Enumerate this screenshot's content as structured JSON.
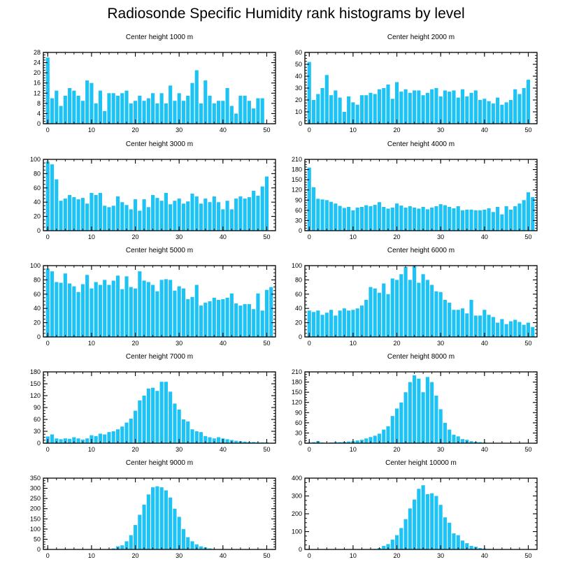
{
  "title": "Radiosonde Specific Humidity rank histograms by level",
  "bar_color": "#1ec3f5",
  "chart_data": [
    {
      "type": "bar",
      "title": "Center height 1000 m",
      "xlim": [
        -1,
        52
      ],
      "ylim": [
        0,
        28
      ],
      "yticks": [
        0,
        4,
        8,
        12,
        16,
        20,
        24,
        28
      ],
      "xticks": [
        0,
        10,
        20,
        30,
        40,
        50
      ],
      "x": [
        0,
        1,
        2,
        3,
        4,
        5,
        6,
        7,
        8,
        9,
        10,
        11,
        12,
        13,
        14,
        15,
        16,
        17,
        18,
        19,
        20,
        21,
        22,
        23,
        24,
        25,
        26,
        27,
        28,
        29,
        30,
        31,
        32,
        33,
        34,
        35,
        36,
        37,
        38,
        39,
        40,
        41,
        42,
        43,
        44,
        45,
        46,
        47,
        48,
        49,
        50,
        51
      ],
      "values": [
        26,
        10,
        13,
        7,
        11,
        14,
        13,
        11,
        9,
        17,
        16,
        8,
        13,
        5,
        12,
        12,
        11,
        12,
        13,
        8,
        9,
        11,
        9,
        10,
        12,
        8,
        12,
        8,
        15,
        9,
        12,
        9,
        11,
        16,
        21,
        8,
        17,
        11,
        8,
        9,
        9,
        14,
        7,
        4,
        11,
        11,
        9,
        6,
        10,
        10,
        0,
        0
      ]
    },
    {
      "type": "bar",
      "title": "Center height 2000 m",
      "xlim": [
        -1,
        52
      ],
      "ylim": [
        0,
        60
      ],
      "yticks": [
        0,
        10,
        20,
        30,
        40,
        50,
        60
      ],
      "xticks": [
        0,
        10,
        20,
        30,
        40,
        50
      ],
      "x": [
        0,
        1,
        2,
        3,
        4,
        5,
        6,
        7,
        8,
        9,
        10,
        11,
        12,
        13,
        14,
        15,
        16,
        17,
        18,
        19,
        20,
        21,
        22,
        23,
        24,
        25,
        26,
        27,
        28,
        29,
        30,
        31,
        32,
        33,
        34,
        35,
        36,
        37,
        38,
        39,
        40,
        41,
        42,
        43,
        44,
        45,
        46,
        47,
        48,
        49,
        50,
        51
      ],
      "values": [
        52,
        20,
        25,
        30,
        41,
        24,
        28,
        22,
        10,
        23,
        18,
        16,
        24,
        24,
        26,
        25,
        29,
        30,
        33,
        21,
        35,
        27,
        29,
        26,
        28,
        28,
        24,
        26,
        29,
        30,
        23,
        28,
        27,
        28,
        22,
        29,
        23,
        26,
        28,
        20,
        21,
        19,
        17,
        22,
        16,
        18,
        20,
        29,
        25,
        30,
        37,
        0
      ]
    },
    {
      "type": "bar",
      "title": "Center height 3000 m",
      "xlim": [
        -1,
        52
      ],
      "ylim": [
        0,
        100
      ],
      "yticks": [
        0,
        20,
        40,
        60,
        80,
        100
      ],
      "xticks": [
        0,
        10,
        20,
        30,
        40,
        50
      ],
      "x": [
        0,
        1,
        2,
        3,
        4,
        5,
        6,
        7,
        8,
        9,
        10,
        11,
        12,
        13,
        14,
        15,
        16,
        17,
        18,
        19,
        20,
        21,
        22,
        23,
        24,
        25,
        26,
        27,
        28,
        29,
        30,
        31,
        32,
        33,
        34,
        35,
        36,
        37,
        38,
        39,
        40,
        41,
        42,
        43,
        44,
        45,
        46,
        47,
        48,
        49,
        50,
        51
      ],
      "values": [
        97,
        93,
        72,
        42,
        45,
        50,
        47,
        44,
        46,
        38,
        53,
        50,
        53,
        35,
        33,
        35,
        48,
        40,
        36,
        30,
        44,
        28,
        44,
        33,
        50,
        46,
        42,
        53,
        37,
        42,
        45,
        38,
        41,
        52,
        48,
        38,
        45,
        40,
        48,
        40,
        30,
        42,
        30,
        45,
        48,
        45,
        47,
        56,
        49,
        62,
        76,
        0
      ]
    },
    {
      "type": "bar",
      "title": "Center height 4000 m",
      "xlim": [
        -1,
        52
      ],
      "ylim": [
        0,
        210
      ],
      "yticks": [
        0,
        30,
        60,
        90,
        120,
        150,
        180,
        210
      ],
      "xticks": [
        0,
        10,
        20,
        30,
        40,
        50
      ],
      "x": [
        0,
        1,
        2,
        3,
        4,
        5,
        6,
        7,
        8,
        9,
        10,
        11,
        12,
        13,
        14,
        15,
        16,
        17,
        18,
        19,
        20,
        21,
        22,
        23,
        24,
        25,
        26,
        27,
        28,
        29,
        30,
        31,
        32,
        33,
        34,
        35,
        36,
        37,
        38,
        39,
        40,
        41,
        42,
        43,
        44,
        45,
        46,
        47,
        48,
        49,
        50,
        51
      ],
      "values": [
        186,
        128,
        94,
        92,
        90,
        85,
        80,
        73,
        67,
        70,
        60,
        68,
        70,
        75,
        72,
        76,
        84,
        70,
        65,
        68,
        80,
        74,
        68,
        72,
        68,
        65,
        70,
        63,
        68,
        72,
        78,
        75,
        70,
        66,
        72,
        60,
        62,
        62,
        60,
        60,
        62,
        66,
        55,
        70,
        48,
        72,
        62,
        72,
        80,
        90,
        113,
        99
      ]
    },
    {
      "type": "bar",
      "title": "Center height 5000 m",
      "xlim": [
        -1,
        52
      ],
      "ylim": [
        0,
        100
      ],
      "yticks": [
        0,
        20,
        40,
        60,
        80,
        100
      ],
      "xticks": [
        0,
        10,
        20,
        30,
        40,
        50
      ],
      "x": [
        0,
        1,
        2,
        3,
        4,
        5,
        6,
        7,
        8,
        9,
        10,
        11,
        12,
        13,
        14,
        15,
        16,
        17,
        18,
        19,
        20,
        21,
        22,
        23,
        24,
        25,
        26,
        27,
        28,
        29,
        30,
        31,
        32,
        33,
        34,
        35,
        36,
        37,
        38,
        39,
        40,
        41,
        42,
        43,
        44,
        45,
        46,
        47,
        48,
        49,
        50,
        51
      ],
      "values": [
        96,
        92,
        77,
        76,
        89,
        75,
        71,
        63,
        74,
        87,
        68,
        77,
        73,
        80,
        73,
        79,
        86,
        67,
        85,
        70,
        68,
        92,
        79,
        77,
        73,
        64,
        80,
        81,
        80,
        65,
        71,
        68,
        53,
        56,
        73,
        44,
        48,
        50,
        55,
        52,
        53,
        55,
        61,
        47,
        44,
        46,
        46,
        39,
        61,
        37,
        66,
        70
      ]
    },
    {
      "type": "bar",
      "title": "Center height 6000 m",
      "xlim": [
        -1,
        52
      ],
      "ylim": [
        0,
        100
      ],
      "yticks": [
        0,
        20,
        40,
        60,
        80,
        100
      ],
      "xticks": [
        0,
        10,
        20,
        30,
        40,
        50
      ],
      "x": [
        0,
        1,
        2,
        3,
        4,
        5,
        6,
        7,
        8,
        9,
        10,
        11,
        12,
        13,
        14,
        15,
        16,
        17,
        18,
        19,
        20,
        21,
        22,
        23,
        24,
        25,
        26,
        27,
        28,
        29,
        30,
        31,
        32,
        33,
        34,
        35,
        36,
        37,
        38,
        39,
        40,
        41,
        42,
        43,
        44,
        45,
        46,
        47,
        48,
        49,
        50,
        51
      ],
      "values": [
        37,
        35,
        37,
        31,
        34,
        38,
        30,
        37,
        40,
        37,
        38,
        40,
        44,
        52,
        70,
        68,
        62,
        75,
        60,
        82,
        80,
        88,
        98,
        80,
        100,
        76,
        88,
        80,
        73,
        64,
        63,
        52,
        48,
        38,
        38,
        40,
        33,
        52,
        30,
        30,
        38,
        31,
        28,
        20,
        25,
        18,
        22,
        24,
        21,
        17,
        20,
        14
      ]
    },
    {
      "type": "bar",
      "title": "Center height 7000 m",
      "xlim": [
        -1,
        52
      ],
      "ylim": [
        0,
        180
      ],
      "yticks": [
        0,
        30,
        60,
        90,
        120,
        150,
        180
      ],
      "xticks": [
        0,
        10,
        20,
        30,
        40,
        50
      ],
      "x": [
        0,
        1,
        2,
        3,
        4,
        5,
        6,
        7,
        8,
        9,
        10,
        11,
        12,
        13,
        14,
        15,
        16,
        17,
        18,
        19,
        20,
        21,
        22,
        23,
        24,
        25,
        26,
        27,
        28,
        29,
        30,
        31,
        32,
        33,
        34,
        35,
        36,
        37,
        38,
        39,
        40,
        41,
        42,
        43,
        44,
        45,
        46,
        47,
        48,
        49,
        50,
        51
      ],
      "values": [
        17,
        22,
        12,
        10,
        12,
        11,
        15,
        12,
        9,
        12,
        20,
        18,
        24,
        22,
        28,
        30,
        35,
        42,
        52,
        62,
        82,
        108,
        120,
        138,
        140,
        132,
        155,
        155,
        130,
        100,
        85,
        60,
        55,
        35,
        30,
        28,
        18,
        15,
        12,
        15,
        12,
        10,
        8,
        6,
        5,
        4,
        3,
        3,
        2,
        2,
        2,
        0
      ]
    },
    {
      "type": "bar",
      "title": "Center height 8000 m",
      "xlim": [
        -1,
        52
      ],
      "ylim": [
        0,
        210
      ],
      "yticks": [
        0,
        30,
        60,
        90,
        120,
        150,
        180,
        210
      ],
      "xticks": [
        0,
        10,
        20,
        30,
        40,
        50
      ],
      "x": [
        0,
        1,
        2,
        3,
        4,
        5,
        6,
        7,
        8,
        9,
        10,
        11,
        12,
        13,
        14,
        15,
        16,
        17,
        18,
        19,
        20,
        21,
        22,
        23,
        24,
        25,
        26,
        27,
        28,
        29,
        30,
        31,
        32,
        33,
        34,
        35,
        36,
        37,
        38,
        39,
        40,
        41,
        42,
        43,
        44,
        45,
        46,
        47,
        48,
        49,
        50,
        51
      ],
      "values": [
        2,
        3,
        6,
        2,
        1,
        2,
        3,
        3,
        4,
        5,
        6,
        8,
        10,
        14,
        18,
        22,
        28,
        40,
        50,
        80,
        102,
        120,
        150,
        180,
        200,
        190,
        150,
        195,
        180,
        140,
        100,
        60,
        40,
        25,
        20,
        12,
        10,
        6,
        4,
        3,
        2,
        1,
        1,
        1,
        0,
        0,
        0,
        0,
        0,
        0,
        0,
        0
      ]
    },
    {
      "type": "bar",
      "title": "Center height 9000 m",
      "xlim": [
        -1,
        52
      ],
      "ylim": [
        0,
        350
      ],
      "yticks": [
        0,
        50,
        100,
        150,
        200,
        250,
        300,
        350
      ],
      "xticks": [
        0,
        10,
        20,
        30,
        40,
        50
      ],
      "x": [
        0,
        1,
        2,
        3,
        4,
        5,
        6,
        7,
        8,
        9,
        10,
        11,
        12,
        13,
        14,
        15,
        16,
        17,
        18,
        19,
        20,
        21,
        22,
        23,
        24,
        25,
        26,
        27,
        28,
        29,
        30,
        31,
        32,
        33,
        34,
        35,
        36,
        37,
        38,
        39,
        40,
        41,
        42,
        43,
        44,
        45,
        46,
        47,
        48,
        49,
        50,
        51
      ],
      "values": [
        0,
        0,
        0,
        0,
        0,
        0,
        0,
        0,
        0,
        0,
        0,
        0,
        0,
        1,
        2,
        5,
        15,
        20,
        40,
        70,
        120,
        170,
        220,
        270,
        305,
        310,
        305,
        290,
        255,
        200,
        160,
        100,
        60,
        40,
        25,
        15,
        10,
        5,
        2,
        1,
        0,
        0,
        0,
        0,
        0,
        0,
        0,
        0,
        0,
        0,
        0,
        0
      ]
    },
    {
      "type": "bar",
      "title": "Center height 10000 m",
      "xlim": [
        -1,
        52
      ],
      "ylim": [
        0,
        400
      ],
      "yticks": [
        0,
        100,
        200,
        300,
        400
      ],
      "xticks": [
        0,
        10,
        20,
        30,
        40,
        50
      ],
      "x": [
        0,
        1,
        2,
        3,
        4,
        5,
        6,
        7,
        8,
        9,
        10,
        11,
        12,
        13,
        14,
        15,
        16,
        17,
        18,
        19,
        20,
        21,
        22,
        23,
        24,
        25,
        26,
        27,
        28,
        29,
        30,
        31,
        32,
        33,
        34,
        35,
        36,
        37,
        38,
        39,
        40,
        41,
        42,
        43,
        44,
        45,
        46,
        47,
        48,
        49,
        50,
        51
      ],
      "values": [
        0,
        0,
        0,
        0,
        0,
        0,
        0,
        0,
        0,
        0,
        0,
        0,
        0,
        1,
        2,
        3,
        8,
        20,
        30,
        55,
        80,
        120,
        170,
        230,
        280,
        340,
        360,
        310,
        315,
        300,
        250,
        180,
        150,
        90,
        80,
        50,
        35,
        20,
        15,
        8,
        5,
        3,
        2,
        1,
        0,
        0,
        0,
        0,
        0,
        0,
        0,
        0
      ]
    }
  ]
}
